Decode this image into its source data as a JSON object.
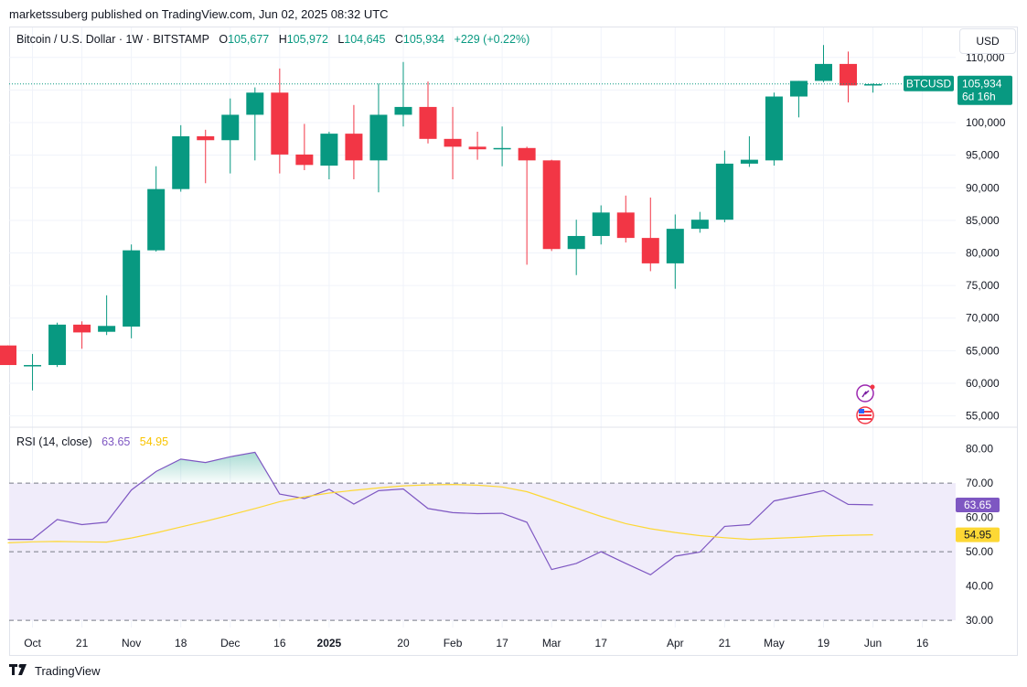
{
  "header": {
    "publish_text": "marketssuberg published on TradingView.com, Jun 02, 2025 08:32 UTC"
  },
  "legend": {
    "symbol": "Bitcoin / U.S. Dollar · 1W · BITSTAMP",
    "o_label": "O",
    "o_value": "105,677",
    "h_label": "H",
    "h_value": "105,972",
    "l_label": "L",
    "l_value": "104,645",
    "c_label": "C",
    "c_value": "105,934",
    "change": "+229 (+0.22%)"
  },
  "currency_button": "USD",
  "price_tag": {
    "symbol": "BTCUSD",
    "price": "105,934",
    "countdown": "6d 16h"
  },
  "rsi_legend": {
    "label": "RSI (14, close)",
    "rsi_value": "63.65",
    "ma_value": "54.95"
  },
  "footer": {
    "brand": "TradingView"
  },
  "colors": {
    "up": "#089981",
    "down": "#f23645",
    "rsi": "#7e57c2",
    "rsi_ma": "#fdd835",
    "rsi_fill": "#f0ecfa"
  },
  "chart_data": [
    {
      "type": "candlestick",
      "series_name": "BTCUSD",
      "price_ticks": [
        "110,000",
        "105,000",
        "100,000",
        "95,000",
        "90,000",
        "85,000",
        "80,000",
        "75,000",
        "70,000",
        "65,000",
        "60,000",
        "55,000"
      ],
      "price_tick_values": [
        110000,
        105000,
        100000,
        95000,
        90000,
        85000,
        80000,
        75000,
        70000,
        65000,
        60000,
        55000
      ],
      "ylim": [
        53400,
        114600
      ],
      "grid": true,
      "x_ticks": [
        {
          "label": "Oct",
          "i": 1
        },
        {
          "label": "21",
          "i": 3
        },
        {
          "label": "Nov",
          "i": 5
        },
        {
          "label": "18",
          "i": 7
        },
        {
          "label": "Dec",
          "i": 9
        },
        {
          "label": "16",
          "i": 11
        },
        {
          "label": "2025",
          "i": 13,
          "bold": true
        },
        {
          "label": "20",
          "i": 16
        },
        {
          "label": "Feb",
          "i": 18
        },
        {
          "label": "17",
          "i": 20
        },
        {
          "label": "Mar",
          "i": 22
        },
        {
          "label": "17",
          "i": 24
        },
        {
          "label": "Apr",
          "i": 27
        },
        {
          "label": "21",
          "i": 29
        },
        {
          "label": "May",
          "i": 31
        },
        {
          "label": "19",
          "i": 33
        },
        {
          "label": "Jun",
          "i": 35
        },
        {
          "label": "16",
          "i": 37
        }
      ],
      "candles": [
        {
          "o": 65800,
          "h": 65800,
          "l": 62800,
          "c": 62800
        },
        {
          "o": 62700,
          "h": 64500,
          "l": 58900,
          "c": 62800
        },
        {
          "o": 62800,
          "h": 69300,
          "l": 62500,
          "c": 69000
        },
        {
          "o": 69000,
          "h": 69500,
          "l": 65300,
          "c": 67800
        },
        {
          "o": 67900,
          "h": 73500,
          "l": 67400,
          "c": 68800
        },
        {
          "o": 68700,
          "h": 81300,
          "l": 66900,
          "c": 80400
        },
        {
          "o": 80400,
          "h": 93300,
          "l": 80200,
          "c": 89800
        },
        {
          "o": 89800,
          "h": 99600,
          "l": 89400,
          "c": 97900
        },
        {
          "o": 97900,
          "h": 98900,
          "l": 90700,
          "c": 97300
        },
        {
          "o": 97300,
          "h": 103700,
          "l": 92200,
          "c": 101200
        },
        {
          "o": 101200,
          "h": 105400,
          "l": 94200,
          "c": 104600
        },
        {
          "o": 104600,
          "h": 108300,
          "l": 92200,
          "c": 95100
        },
        {
          "o": 95100,
          "h": 99800,
          "l": 92700,
          "c": 93500
        },
        {
          "o": 93400,
          "h": 98600,
          "l": 91300,
          "c": 98300
        },
        {
          "o": 98300,
          "h": 102700,
          "l": 91300,
          "c": 94200
        },
        {
          "o": 94200,
          "h": 106000,
          "l": 89300,
          "c": 101200
        },
        {
          "o": 101200,
          "h": 109300,
          "l": 99400,
          "c": 102400
        },
        {
          "o": 102400,
          "h": 106300,
          "l": 96800,
          "c": 97500
        },
        {
          "o": 97500,
          "h": 102400,
          "l": 91300,
          "c": 96300
        },
        {
          "o": 96300,
          "h": 98600,
          "l": 94300,
          "c": 95900
        },
        {
          "o": 95900,
          "h": 99400,
          "l": 93300,
          "c": 96100
        },
        {
          "o": 96100,
          "h": 96300,
          "l": 78200,
          "c": 94200
        },
        {
          "o": 94200,
          "h": 94300,
          "l": 80300,
          "c": 80600
        },
        {
          "o": 80600,
          "h": 85100,
          "l": 76600,
          "c": 82600
        },
        {
          "o": 82600,
          "h": 87300,
          "l": 81300,
          "c": 86200
        },
        {
          "o": 86200,
          "h": 88800,
          "l": 81600,
          "c": 82300
        },
        {
          "o": 82300,
          "h": 88500,
          "l": 77200,
          "c": 78400
        },
        {
          "o": 78400,
          "h": 85900,
          "l": 74500,
          "c": 83700
        },
        {
          "o": 83700,
          "h": 86300,
          "l": 83100,
          "c": 85100
        },
        {
          "o": 85100,
          "h": 95700,
          "l": 84700,
          "c": 93700
        },
        {
          "o": 93700,
          "h": 97900,
          "l": 93200,
          "c": 94300
        },
        {
          "o": 94200,
          "h": 104600,
          "l": 93400,
          "c": 104000
        },
        {
          "o": 104000,
          "h": 106400,
          "l": 100800,
          "c": 106400
        },
        {
          "o": 106400,
          "h": 111900,
          "l": 106200,
          "c": 109000
        },
        {
          "o": 109000,
          "h": 110900,
          "l": 103100,
          "c": 105700
        },
        {
          "o": 105700,
          "h": 106000,
          "l": 104600,
          "c": 105900
        }
      ],
      "last_price": 105934
    },
    {
      "type": "line",
      "title": "RSI (14, close)",
      "ylim": [
        27.9,
        86.3
      ],
      "ticks": [
        "80.00",
        "70.00",
        "60.00",
        "50.00",
        "40.00",
        "30.00"
      ],
      "tick_values": [
        80,
        70,
        60,
        50,
        40,
        30
      ],
      "bands": {
        "upper": 70,
        "middle": 50,
        "lower": 30
      },
      "series": [
        {
          "name": "RSI",
          "color": "#7e57c2",
          "values": [
            53.6,
            53.6,
            59.4,
            57.9,
            58.6,
            68.0,
            73.4,
            77.0,
            76.0,
            77.7,
            79.0,
            66.8,
            65.5,
            68.2,
            63.9,
            67.8,
            68.3,
            62.6,
            61.4,
            61.1,
            61.2,
            58.6,
            44.8,
            46.6,
            50.0,
            46.6,
            43.3,
            48.7,
            49.9,
            57.4,
            57.9,
            64.8,
            66.3,
            67.8,
            63.8,
            63.65
          ]
        },
        {
          "name": "RSI-based MA",
          "color": "#fdd835",
          "values": [
            52.6,
            52.9,
            53.0,
            52.9,
            52.8,
            54.0,
            55.5,
            57.2,
            58.9,
            60.7,
            62.6,
            64.6,
            66.0,
            67.1,
            67.9,
            68.6,
            69.2,
            69.5,
            69.6,
            69.4,
            68.9,
            67.5,
            65.1,
            62.7,
            60.3,
            58.2,
            56.7,
            55.6,
            54.7,
            54.1,
            53.6,
            53.9,
            54.2,
            54.6,
            54.8,
            54.95
          ]
        }
      ]
    }
  ]
}
